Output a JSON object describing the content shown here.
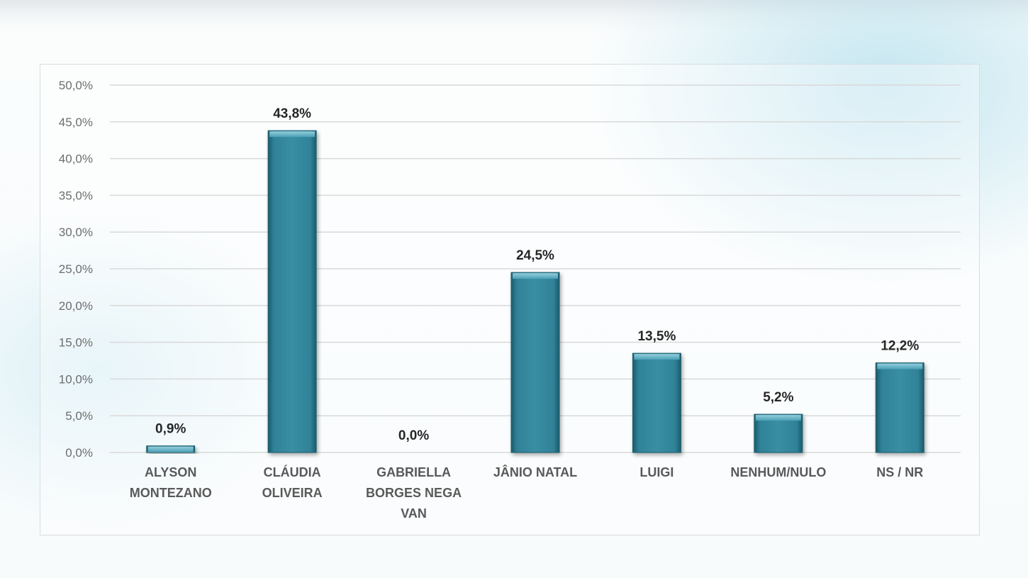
{
  "chart_data": {
    "type": "bar",
    "categories": [
      "ALYSON\nMONTEZANO",
      "CLÁUDIA\nOLIVEIRA",
      "GABRIELLA\nBORGES NEGA\nVAN",
      "JÂNIO NATAL",
      "LUIGI",
      "NENHUM/NULO",
      "NS / NR"
    ],
    "values": [
      0.9,
      43.8,
      0.0,
      24.5,
      13.5,
      5.2,
      12.2
    ],
    "data_labels": [
      "0,9%",
      "43,8%",
      "0,0%",
      "24,5%",
      "13,5%",
      "5,2%",
      "12,2%"
    ],
    "ylim": [
      0,
      50
    ],
    "yticks": [
      0,
      5,
      10,
      15,
      20,
      25,
      30,
      35,
      40,
      45,
      50
    ],
    "ytick_labels": [
      "0,0%",
      "5,0%",
      "10,0%",
      "15,0%",
      "20,0%",
      "25,0%",
      "30,0%",
      "35,0%",
      "40,0%",
      "45,0%",
      "50,0%"
    ],
    "grid": true,
    "legend": "none",
    "bar_color": "#2f8297"
  }
}
